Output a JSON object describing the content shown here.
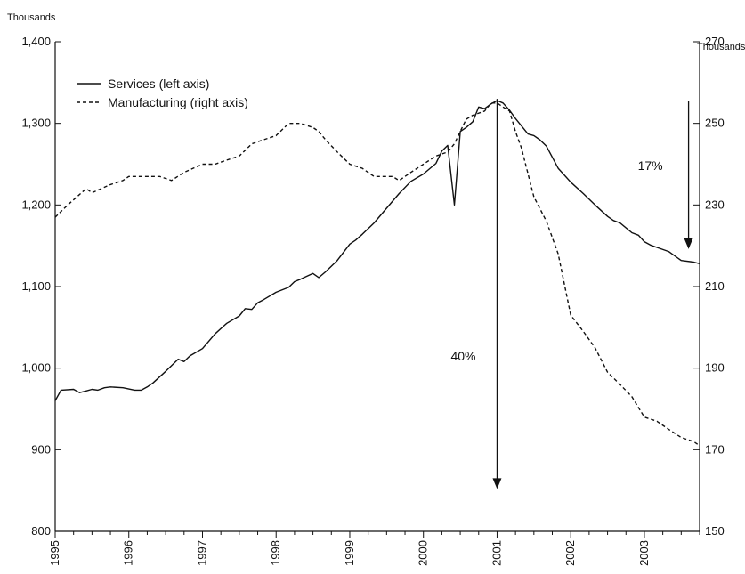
{
  "chart_data": {
    "type": "line",
    "left_unit": "Thousands",
    "right_unit": "Thousands",
    "x_ticks": [
      "1995",
      "1996",
      "1997",
      "1998",
      "1999",
      "2000",
      "2001",
      "2002",
      "2003"
    ],
    "x_range": [
      1995,
      2003.75
    ],
    "y_left": {
      "range": [
        800,
        1400
      ],
      "ticks": [
        800,
        900,
        1000,
        1100,
        1200,
        1300,
        1400
      ],
      "tick_labels": [
        "800",
        "900",
        "1,000",
        "1,100",
        "1,200",
        "1,300",
        "1,400"
      ]
    },
    "y_right": {
      "range": [
        150,
        270
      ],
      "ticks": [
        150,
        170,
        190,
        210,
        230,
        250,
        270
      ],
      "tick_labels": [
        "150",
        "170",
        "190",
        "210",
        "230",
        "250",
        "270"
      ]
    },
    "legend": {
      "position": "top-left"
    },
    "grid": false,
    "series": [
      {
        "name": "Services (left axis)",
        "axis": "left",
        "style": "solid",
        "x": [
          1995.0,
          1995.08,
          1995.25,
          1995.33,
          1995.42,
          1995.5,
          1995.58,
          1995.67,
          1995.75,
          1995.92,
          1996.08,
          1996.17,
          1996.25,
          1996.33,
          1996.5,
          1996.58,
          1996.67,
          1996.75,
          1996.83,
          1997.0,
          1997.17,
          1997.33,
          1997.5,
          1997.58,
          1997.67,
          1997.75,
          1997.83,
          1998.0,
          1998.17,
          1998.25,
          1998.33,
          1998.5,
          1998.58,
          1998.67,
          1998.75,
          1998.83,
          1999.0,
          1999.08,
          1999.17,
          1999.33,
          1999.5,
          1999.67,
          1999.83,
          2000.0,
          2000.17,
          2000.25,
          2000.33,
          2000.42,
          2000.5,
          2000.58,
          2000.67,
          2000.75,
          2000.83,
          2000.92,
          2001.0,
          2001.08,
          2001.17,
          2001.25,
          2001.42,
          2001.5,
          2001.58,
          2001.67,
          2001.83,
          2002.0,
          2002.17,
          2002.33,
          2002.5,
          2002.58,
          2002.67,
          2002.83,
          2002.92,
          2003.0,
          2003.08,
          2003.17,
          2003.33,
          2003.5,
          2003.67,
          2003.75
        ],
        "values": [
          960,
          973,
          974,
          970,
          972,
          974,
          973,
          976,
          977,
          976,
          973,
          973,
          977,
          982,
          996,
          1003,
          1011,
          1008,
          1015,
          1024,
          1042,
          1055,
          1064,
          1073,
          1072,
          1080,
          1084,
          1093,
          1099,
          1106,
          1109,
          1116,
          1111,
          1118,
          1125,
          1132,
          1152,
          1157,
          1164,
          1178,
          1196,
          1214,
          1229,
          1238,
          1251,
          1266,
          1273,
          1200,
          1290,
          1295,
          1302,
          1320,
          1318,
          1324,
          1328,
          1325,
          1316,
          1306,
          1287,
          1285,
          1280,
          1272,
          1245,
          1228,
          1214,
          1200,
          1186,
          1181,
          1178,
          1166,
          1163,
          1155,
          1151,
          1148,
          1143,
          1132,
          1130,
          1128
        ]
      },
      {
        "name": "Manufacturing (right axis)",
        "axis": "right",
        "style": "dashed",
        "x": [
          1995.0,
          1995.17,
          1995.42,
          1995.5,
          1995.75,
          1995.92,
          1996.0,
          1996.33,
          1996.42,
          1996.58,
          1996.75,
          1997.0,
          1997.17,
          1997.33,
          1997.5,
          1997.67,
          1997.83,
          1998.0,
          1998.17,
          1998.33,
          1998.5,
          1998.58,
          1998.67,
          1998.83,
          1999.0,
          1999.17,
          1999.33,
          1999.42,
          1999.58,
          1999.67,
          1999.83,
          2000.0,
          2000.17,
          2000.33,
          2000.42,
          2000.5,
          2000.58,
          2000.67,
          2000.83,
          2000.92,
          2001.0,
          2001.08,
          2001.17,
          2001.25,
          2001.33,
          2001.5,
          2001.67,
          2001.83,
          2002.0,
          2002.17,
          2002.33,
          2002.5,
          2002.67,
          2002.83,
          2003.0,
          2003.17,
          2003.33,
          2003.5,
          2003.67,
          2003.75
        ],
        "values": [
          227,
          230,
          234,
          233,
          235,
          236,
          237,
          237,
          237,
          236,
          238,
          240,
          240,
          241,
          242,
          245,
          246,
          247,
          250,
          250,
          249,
          248,
          246,
          243,
          240,
          239,
          237,
          237,
          237,
          236,
          238,
          240,
          242,
          243,
          245,
          248,
          251,
          252,
          253,
          255,
          255,
          254,
          253,
          248,
          244,
          232,
          226,
          218,
          203,
          199,
          195,
          189,
          186,
          183,
          178,
          177,
          175,
          173,
          172,
          171
        ]
      }
    ],
    "annotations": [
      {
        "text": "40%",
        "x": 2001.0,
        "arrow_from_left": 1330,
        "arrow_to_left": 852
      },
      {
        "text": "17%",
        "x": 2003.6,
        "arrow_from_left": 1328,
        "arrow_to_left": 1146
      }
    ]
  }
}
